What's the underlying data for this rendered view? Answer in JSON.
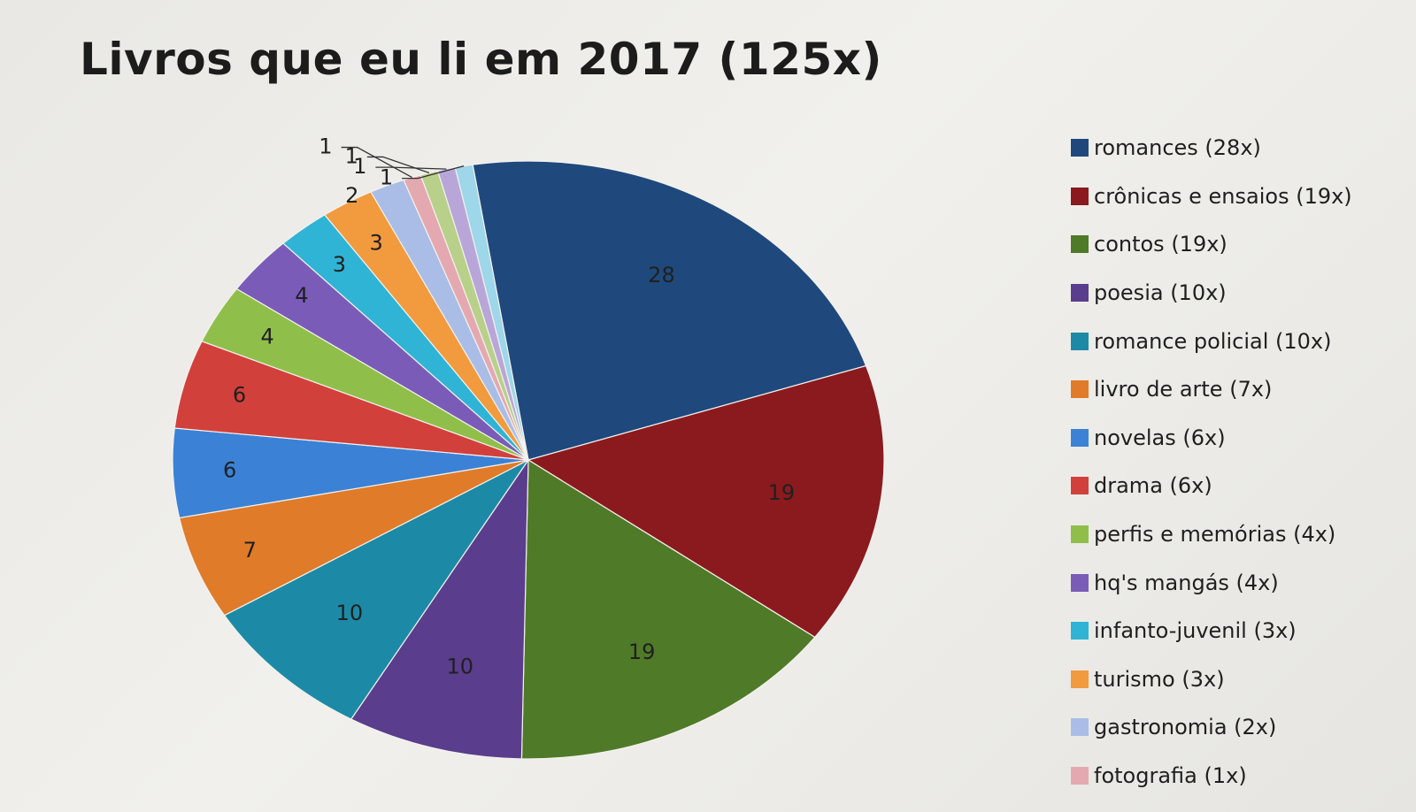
{
  "chart_data": {
    "type": "pie",
    "title": "Livros que eu li em 2017 (125x)",
    "legend_position": "right",
    "slices": [
      {
        "label": "romances",
        "legend": "romances (28x)",
        "value": 28,
        "color": "#1f497d"
      },
      {
        "label": "crônicas e ensaios",
        "legend": "crônicas e ensaios (19x)",
        "value": 19,
        "color": "#8b1a1e"
      },
      {
        "label": "contos",
        "legend": "contos (19x)",
        "value": 19,
        "color": "#4f7a28"
      },
      {
        "label": "poesia",
        "legend": "poesia (10x)",
        "value": 10,
        "color": "#5a3d8c"
      },
      {
        "label": "romance policial",
        "legend": "romance policial (10x)",
        "value": 10,
        "color": "#1c8aa6"
      },
      {
        "label": "livro de arte",
        "legend": "livro de arte (7x)",
        "value": 7,
        "color": "#e07b2a"
      },
      {
        "label": "novelas",
        "legend": "novelas (6x)",
        "value": 6,
        "color": "#3b82d6"
      },
      {
        "label": "drama",
        "legend": "drama (6x)",
        "value": 6,
        "color": "#d2403c"
      },
      {
        "label": "perfis e memórias",
        "legend": "perfis e memórias (4x)",
        "value": 4,
        "color": "#8fbf4a"
      },
      {
        "label": "hq's mangás",
        "legend": "hq's mangás (4x)",
        "value": 4,
        "color": "#7a5cb8"
      },
      {
        "label": "infanto-juvenil",
        "legend": "infanto-juvenil (3x)",
        "value": 3,
        "color": "#2fb4d6"
      },
      {
        "label": "turismo",
        "legend": "turismo (3x)",
        "value": 3,
        "color": "#f29a3e"
      },
      {
        "label": "gastronomia",
        "legend": "gastronomia (2x)",
        "value": 2,
        "color": "#a9bde6"
      },
      {
        "label": "fotografia",
        "legend": "fotografia (1x)",
        "value": 1,
        "color": "#e4a9b0"
      },
      {
        "label": "",
        "legend": "",
        "value": 1,
        "color": "#b8d08a"
      },
      {
        "label": "",
        "legend": "",
        "value": 1,
        "color": "#b9a6d8"
      },
      {
        "label": "",
        "legend": "",
        "value": 1,
        "color": "#9ed6ea"
      }
    ]
  }
}
